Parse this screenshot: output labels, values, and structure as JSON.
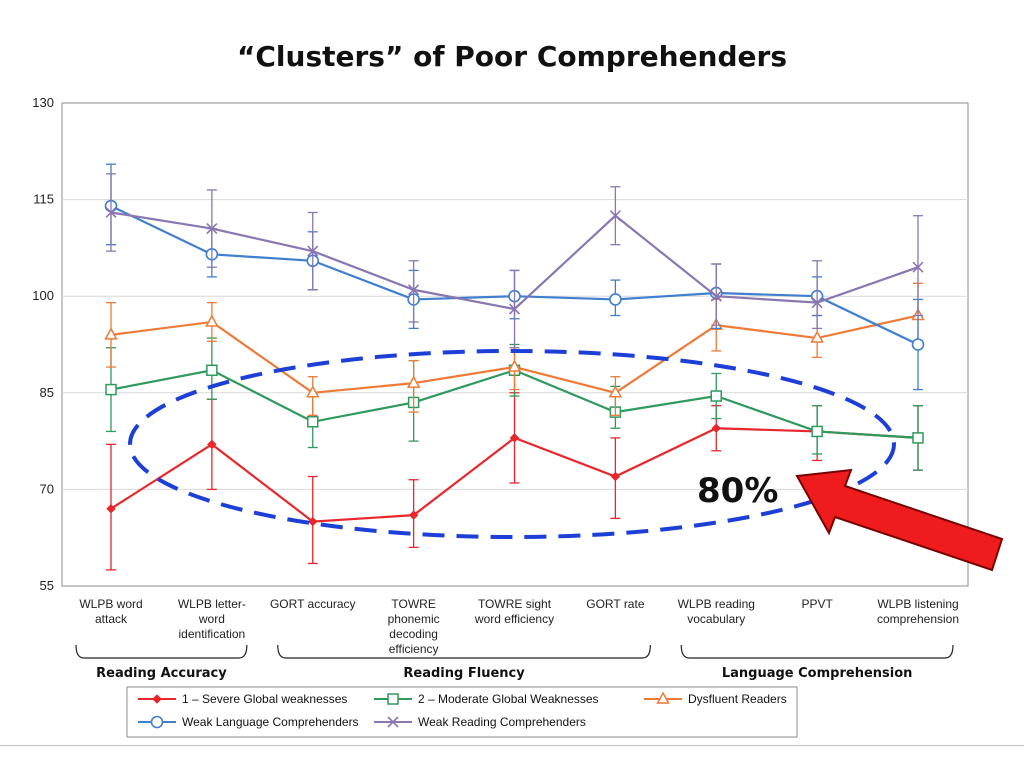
{
  "slide": {
    "title": "“Clusters” of Poor Comprehenders"
  },
  "chart_data": {
    "type": "line",
    "title": "“Clusters” of Poor Comprehenders",
    "ylim": [
      55,
      130
    ],
    "yticks": [
      55,
      70,
      85,
      100,
      115,
      130
    ],
    "grid": true,
    "categories": [
      [
        "WLPB word",
        "attack"
      ],
      [
        "WLPB letter-",
        "word",
        "identification"
      ],
      [
        "GORT accuracy"
      ],
      [
        "TOWRE",
        "phonemic",
        "decoding",
        "efficiency"
      ],
      [
        "TOWRE sight",
        "word efficiency"
      ],
      [
        "GORT rate"
      ],
      [
        "WLPB reading",
        "vocabulary"
      ],
      [
        "PPVT"
      ],
      [
        "WLPB listening",
        "comprehension"
      ]
    ],
    "category_groups": [
      {
        "label": "Reading Accuracy",
        "from": 0,
        "to": 1
      },
      {
        "label": "Reading Fluency",
        "from": 2,
        "to": 5
      },
      {
        "label": "Language Comprehension",
        "from": 6,
        "to": 8
      }
    ],
    "series": [
      {
        "name": "1 – Severe Global weaknesses",
        "color": "#e8262b",
        "marker": "diamond",
        "values": [
          67,
          77,
          65,
          66,
          78,
          72,
          79.5,
          79,
          78
        ],
        "err_low": [
          57.5,
          70,
          58.5,
          61,
          71,
          65.5,
          76,
          74.5,
          73
        ],
        "err_high": [
          77,
          84,
          72,
          71.5,
          85,
          78,
          83,
          83,
          83
        ]
      },
      {
        "name": "2 – Moderate Global Weaknesses",
        "color": "#2e9a5c",
        "marker": "square",
        "values": [
          85.5,
          88.5,
          80.5,
          83.5,
          88.5,
          82,
          84.5,
          79,
          78
        ],
        "err_low": [
          79,
          84,
          76.5,
          77.5,
          84.5,
          79.5,
          81,
          75.5,
          73
        ],
        "err_high": [
          92,
          93.5,
          84.5,
          90,
          92.5,
          86,
          88,
          83,
          83
        ]
      },
      {
        "name": "Dysfluent Readers",
        "color": "#ee7a36",
        "marker": "triangle",
        "values": [
          94,
          96,
          85,
          86.5,
          89,
          85,
          95.5,
          93.5,
          97
        ],
        "err_low": [
          89,
          93,
          81.5,
          82,
          85.5,
          81.5,
          91.5,
          90.5,
          92
        ],
        "err_high": [
          99,
          99,
          87.5,
          90,
          92,
          87.5,
          99.5,
          97,
          102
        ]
      },
      {
        "name": "Weak Language Comprehenders",
        "color": "#3e7fce",
        "marker": "circle",
        "values": [
          114,
          106.5,
          105.5,
          99.5,
          100,
          99.5,
          100.5,
          100,
          92.5
        ],
        "err_low": [
          108,
          103,
          101,
          95,
          96.5,
          97,
          95,
          97,
          85.5
        ],
        "err_high": [
          120.5,
          110.5,
          110,
          104,
          104,
          102.5,
          105,
          103,
          99.5
        ]
      },
      {
        "name": "Weak Reading Comprehenders",
        "color": "#8a76b1",
        "marker": "x",
        "values": [
          113,
          110.5,
          107,
          101,
          98,
          112.5,
          100,
          99,
          104.5
        ],
        "err_low": [
          107,
          104.5,
          101,
          96,
          92,
          108,
          95.5,
          95,
          97
        ],
        "err_high": [
          119,
          116.5,
          113,
          105.5,
          104,
          117,
          105,
          105.5,
          112.5
        ]
      }
    ],
    "annotations": [
      {
        "text": "80%",
        "type": "callout-arrow-ellipse"
      }
    ]
  },
  "annotation": {
    "callout_text": "80%"
  },
  "colors": {
    "ellipse": "#1c3fd8",
    "arrow_fill": "#ee1c1c",
    "arrow_stroke": "#7a0000",
    "grid": "#d9d9d9"
  }
}
